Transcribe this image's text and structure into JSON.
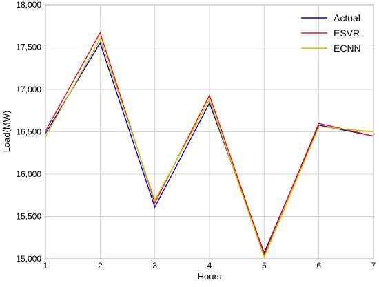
{
  "chart_data": {
    "type": "line",
    "title": "",
    "xlabel": "Hours",
    "ylabel": "Load(MW)",
    "x": [
      1,
      2,
      3,
      4,
      5,
      6,
      7
    ],
    "xlim": [
      1,
      7
    ],
    "ylim": [
      15000,
      18000
    ],
    "x_ticks": [
      "1",
      "2",
      "3",
      "4",
      "5",
      "6",
      "7"
    ],
    "y_ticks": [
      {
        "value": 15000,
        "label": "15,000"
      },
      {
        "value": 15500,
        "label": "15,500"
      },
      {
        "value": 16000,
        "label": "16,000"
      },
      {
        "value": 16500,
        "label": "16,500"
      },
      {
        "value": 17000,
        "label": "17,000"
      },
      {
        "value": 17500,
        "label": "17,500"
      },
      {
        "value": 18000,
        "label": "18,000"
      }
    ],
    "grid": true,
    "legend_position": "top-right",
    "series": [
      {
        "name": "Actual",
        "color": "#0000cc",
        "values": [
          16480,
          17550,
          15610,
          16840,
          15070,
          16580,
          16450
        ]
      },
      {
        "name": "ESVR",
        "color": "#ee1111",
        "values": [
          16510,
          17670,
          15660,
          16930,
          15050,
          16600,
          16450
        ]
      },
      {
        "name": "ECNN",
        "color": "#c8c800",
        "values": [
          16440,
          17600,
          15690,
          16880,
          15020,
          16560,
          16500
        ]
      }
    ]
  }
}
